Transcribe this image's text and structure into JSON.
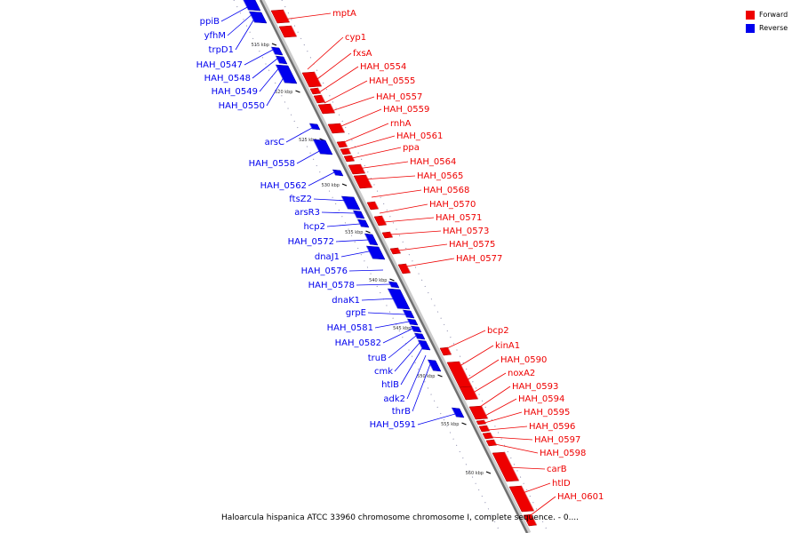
{
  "legend": {
    "forward_label": "Forward",
    "reverse_label": "Reverse",
    "forward_color": "#ee0000",
    "reverse_color": "#0000ee"
  },
  "caption": "Haloarcula hispanica ATCC 33960 chromosome chromosome I, complete sequence. - 0....",
  "ticks": [
    {
      "label": "515 kbp"
    },
    {
      "label": "520 kbp"
    },
    {
      "label": "525 kbp"
    },
    {
      "label": "530 kbp"
    },
    {
      "label": "535 kbp"
    },
    {
      "label": "540 kbp"
    },
    {
      "label": "545 kbp"
    },
    {
      "label": "550 kbp"
    },
    {
      "label": "555 kbp"
    },
    {
      "label": "560 kbp"
    }
  ],
  "forward_genes": [
    {
      "name": "mptA"
    },
    {
      "name": "cyp1"
    },
    {
      "name": "fxsA"
    },
    {
      "name": "HAH_0554"
    },
    {
      "name": "HAH_0555"
    },
    {
      "name": "HAH_0557"
    },
    {
      "name": "HAH_0559"
    },
    {
      "name": "rnhA"
    },
    {
      "name": "HAH_0561"
    },
    {
      "name": "ppa"
    },
    {
      "name": "HAH_0564"
    },
    {
      "name": "HAH_0565"
    },
    {
      "name": "HAH_0568"
    },
    {
      "name": "HAH_0570"
    },
    {
      "name": "HAH_0571"
    },
    {
      "name": "HAH_0573"
    },
    {
      "name": "HAH_0575"
    },
    {
      "name": "HAH_0577"
    },
    {
      "name": "bcp2"
    },
    {
      "name": "kinA1"
    },
    {
      "name": "HAH_0590"
    },
    {
      "name": "noxA2"
    },
    {
      "name": "HAH_0593"
    },
    {
      "name": "HAH_0594"
    },
    {
      "name": "HAH_0595"
    },
    {
      "name": "HAH_0596"
    },
    {
      "name": "HAH_0597"
    },
    {
      "name": "HAH_0598"
    },
    {
      "name": "carB"
    },
    {
      "name": "htlD"
    },
    {
      "name": "HAH_0601"
    }
  ],
  "reverse_genes": [
    {
      "name": "ppiB"
    },
    {
      "name": "yfhM"
    },
    {
      "name": "trpD1"
    },
    {
      "name": "HAH_0547"
    },
    {
      "name": "HAH_0548"
    },
    {
      "name": "HAH_0549"
    },
    {
      "name": "HAH_0550"
    },
    {
      "name": "arsC"
    },
    {
      "name": "HAH_0558"
    },
    {
      "name": "HAH_0562"
    },
    {
      "name": "ftsZ2"
    },
    {
      "name": "arsR3"
    },
    {
      "name": "hcp2"
    },
    {
      "name": "HAH_0572"
    },
    {
      "name": "dnaJ1"
    },
    {
      "name": "HAH_0576"
    },
    {
      "name": "HAH_0578"
    },
    {
      "name": "dnaK1"
    },
    {
      "name": "grpE"
    },
    {
      "name": "HAH_0581"
    },
    {
      "name": "HAH_0582"
    },
    {
      "name": "truB"
    },
    {
      "name": "cmk"
    },
    {
      "name": "htlB"
    },
    {
      "name": "adk2"
    },
    {
      "name": "thrB"
    },
    {
      "name": "HAH_0591"
    }
  ]
}
